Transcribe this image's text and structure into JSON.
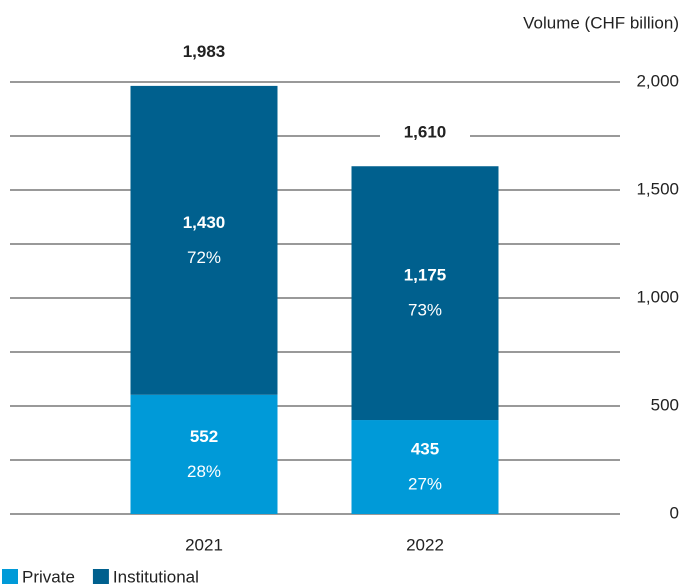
{
  "chart_data": {
    "type": "stacked_bar",
    "y_axis_label": "Volume (CHF billion)",
    "categories": [
      "2021",
      "2022"
    ],
    "series": [
      {
        "name": "Private",
        "color": "#009ad8",
        "values": [
          552,
          435
        ],
        "value_labels": [
          "552",
          "435"
        ],
        "percent_labels": [
          "28%",
          "27%"
        ]
      },
      {
        "name": "Institutional",
        "color": "#00608e",
        "values": [
          1430,
          1175
        ],
        "value_labels": [
          "1,430",
          "1,175"
        ],
        "percent_labels": [
          "72%",
          "73%"
        ]
      }
    ],
    "totals": [
      1983,
      1610
    ],
    "total_labels": [
      "1,983",
      "1,610"
    ],
    "ylim": [
      0,
      2000
    ],
    "yticks": [
      0,
      500,
      {
        "value": 1000,
        "label": "1,000"
      },
      {
        "value": 1500,
        "label": "1,500"
      },
      {
        "value": 2000,
        "label": "2,000"
      }
    ],
    "grid_lines": [
      0,
      250,
      500,
      750,
      1000,
      1250,
      1500,
      1750,
      2000
    ]
  }
}
